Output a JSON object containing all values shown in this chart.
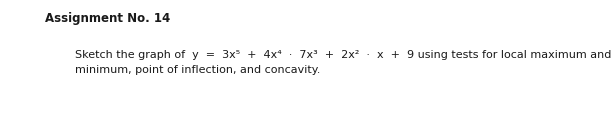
{
  "title": "Assignment No. 14",
  "line1": "Sketch the graph of  y  =  3x⁵  +  4x⁴  ·  7x³  +  2x²  ·  x  +  9 using tests for local maximum and",
  "line2": "minimum, point of inflection, and concavity.",
  "title_fontsize": 8.5,
  "body_fontsize": 8.0,
  "background_color": "#ffffff",
  "text_color": "#1a1a1a",
  "title_bold": true
}
